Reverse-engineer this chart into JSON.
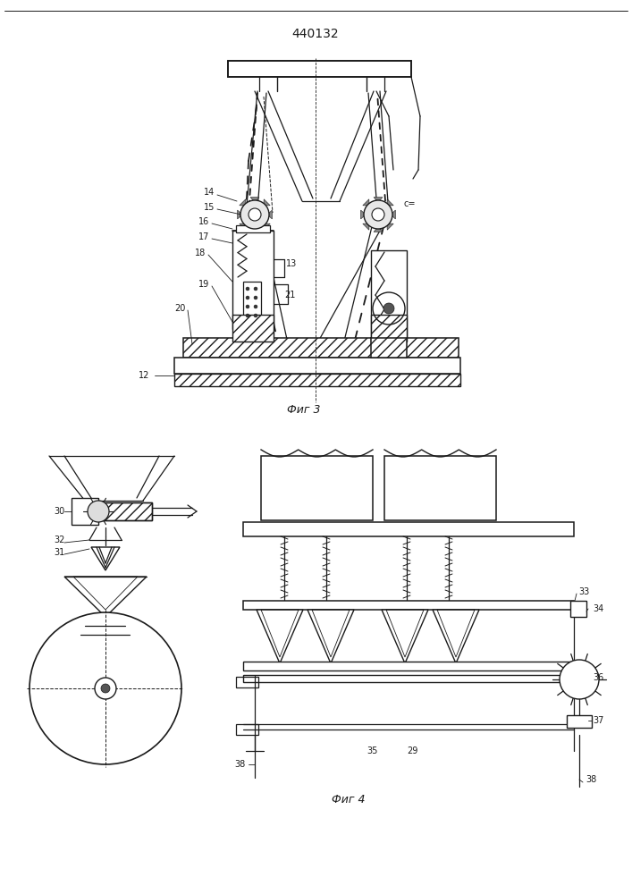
{
  "title": "440132",
  "fig3_label": "Фиг 3",
  "fig4_label": "Фиг 4",
  "bg_color": "#ffffff",
  "lc": "#1a1a1a",
  "lw": 0.9
}
